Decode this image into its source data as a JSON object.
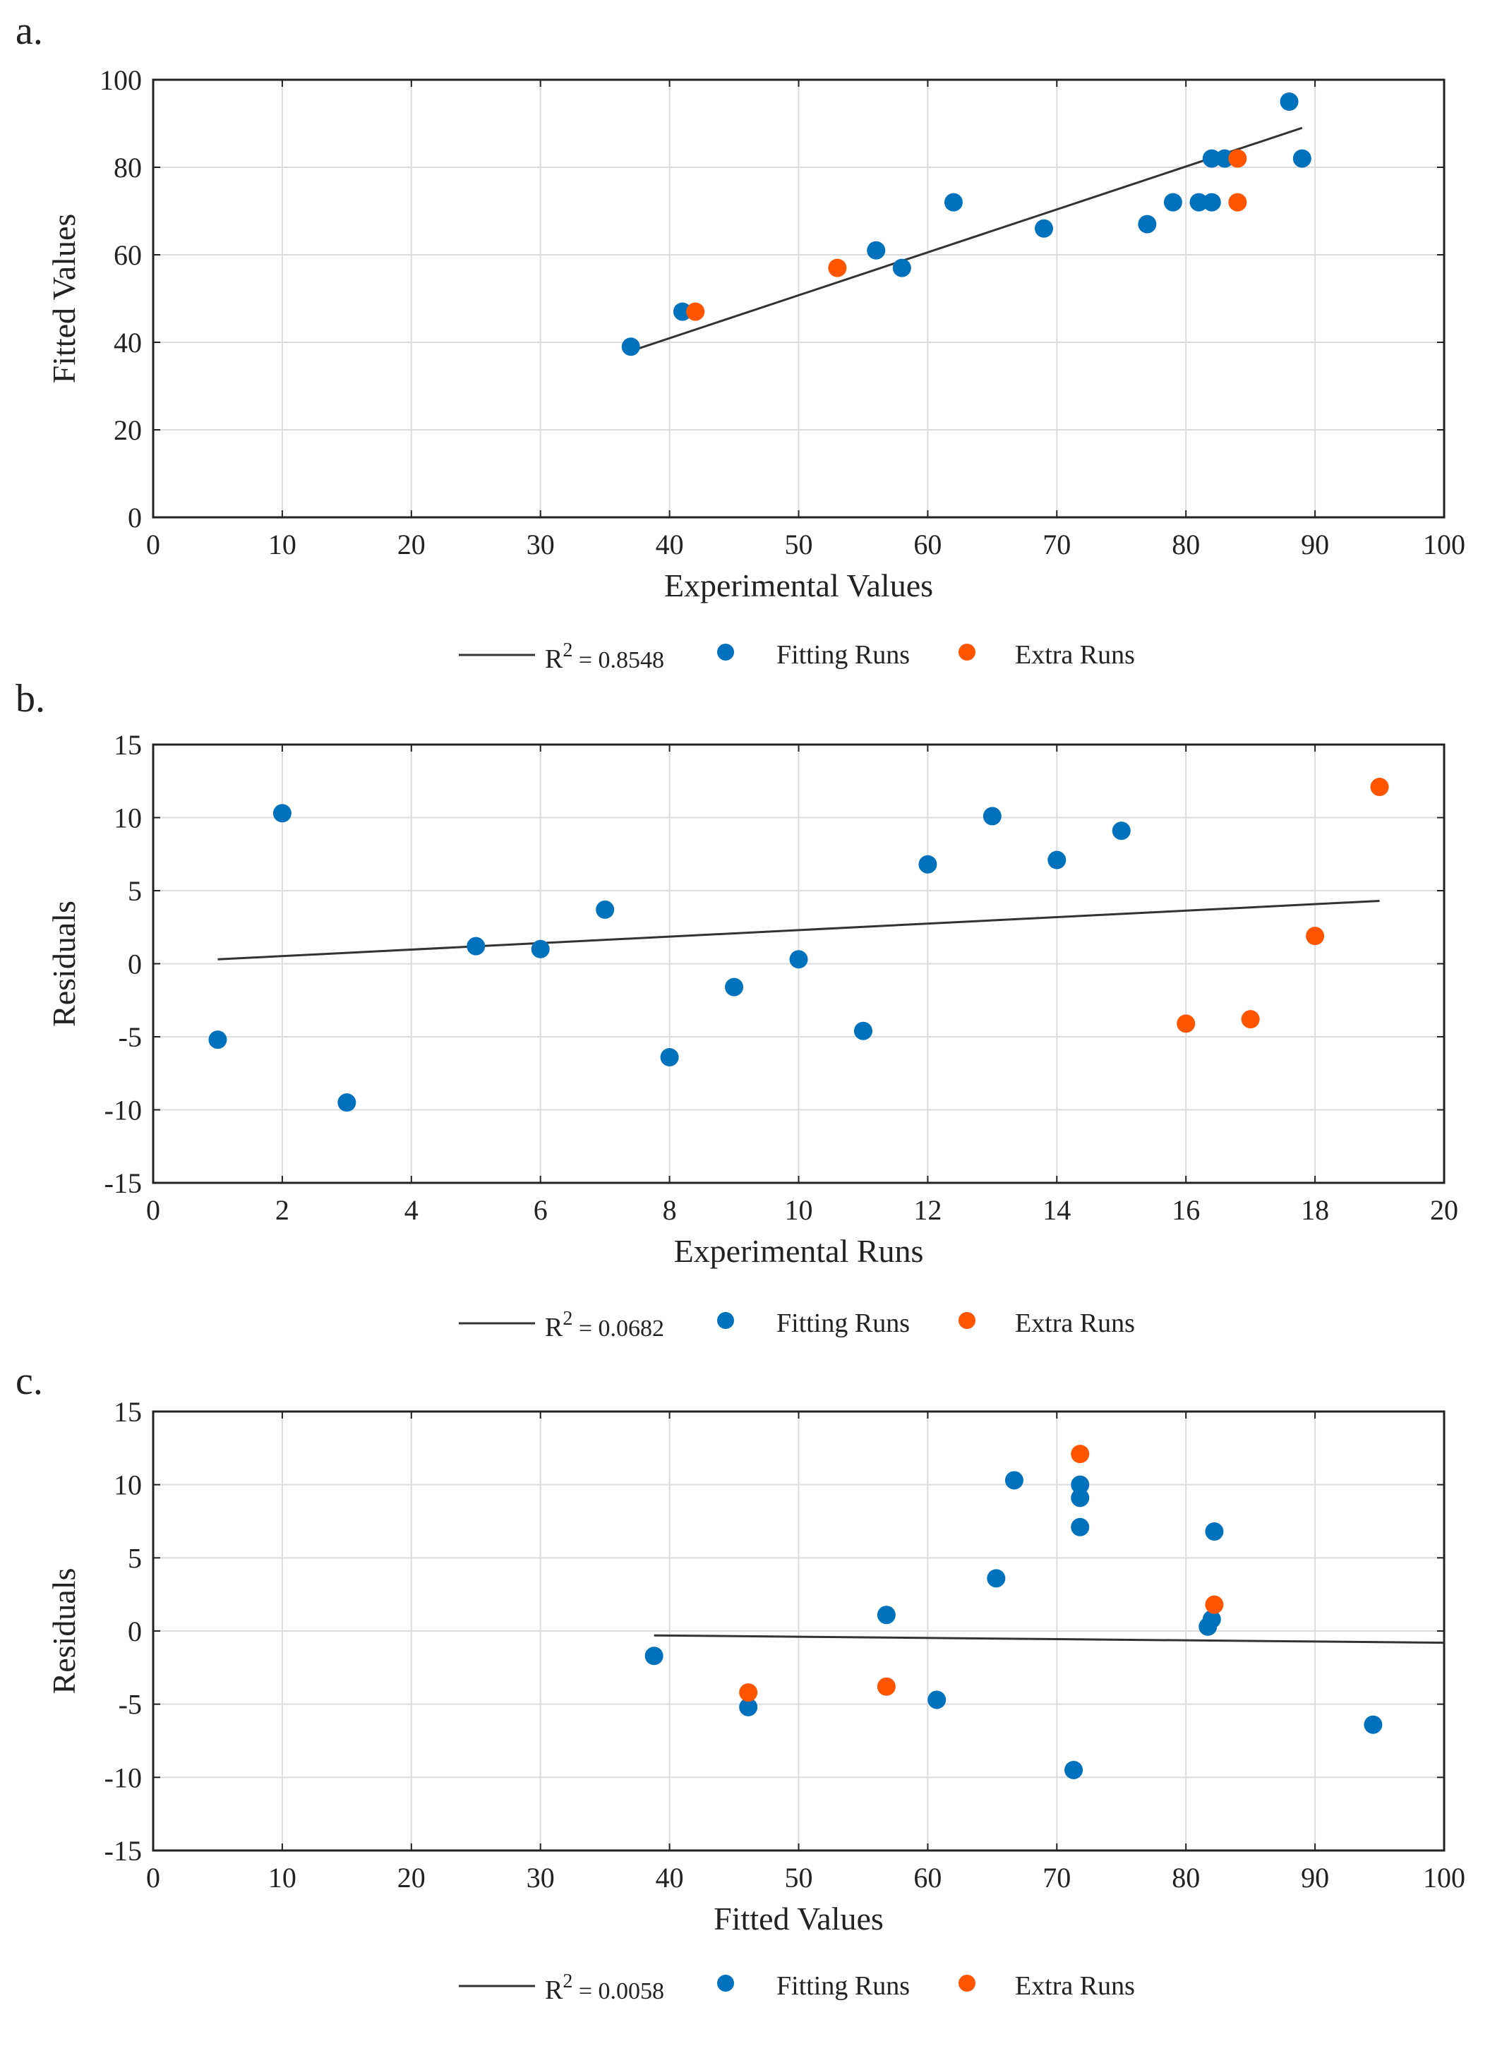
{
  "colors": {
    "fitting": "#0072BD",
    "extra": "#FF5500",
    "fit_line": "#333333",
    "grid": "#dcdcdc",
    "axis": "#222222"
  },
  "chart_data": [
    {
      "type": "scatter",
      "panel_label": "a.",
      "title": "",
      "xlabel": "Experimental Values",
      "ylabel": "Fitted Values",
      "xlim": [
        0,
        100
      ],
      "ylim": [
        0,
        100
      ],
      "xticks": [
        "0",
        "10",
        "20",
        "30",
        "40",
        "50",
        "60",
        "70",
        "80",
        "90",
        "100"
      ],
      "yticks": [
        "0",
        "20",
        "40",
        "60",
        "80",
        "100"
      ],
      "grid": true,
      "legend_position": "below",
      "series": [
        {
          "name": "Fitting Runs",
          "color": "#0072BD",
          "points": [
            [
              37,
              39
            ],
            [
              41,
              47
            ],
            [
              56,
              61
            ],
            [
              58,
              57
            ],
            [
              62,
              72
            ],
            [
              69,
              66
            ],
            [
              77,
              67
            ],
            [
              79,
              72
            ],
            [
              81,
              72
            ],
            [
              82,
              72
            ],
            [
              82,
              82
            ],
            [
              83,
              82
            ],
            [
              88,
              95
            ],
            [
              89,
              82
            ]
          ]
        },
        {
          "name": "Extra Runs",
          "color": "#FF5500",
          "points": [
            [
              42,
              47
            ],
            [
              53,
              57
            ],
            [
              84,
              72
            ],
            [
              84,
              82
            ]
          ]
        }
      ],
      "fit_line": {
        "name_prefix": "R",
        "name_exp": "2",
        "name_value": " = 0.8548",
        "x": [
          37,
          89
        ],
        "y": [
          38,
          89
        ]
      }
    },
    {
      "type": "scatter",
      "panel_label": "b.",
      "title": "",
      "xlabel": "Experimental Runs",
      "ylabel": "Residuals",
      "xlim": [
        0,
        20
      ],
      "ylim": [
        -15,
        15
      ],
      "xticks": [
        "0",
        "2",
        "4",
        "6",
        "8",
        "10",
        "12",
        "14",
        "16",
        "18",
        "20"
      ],
      "yticks": [
        "-15",
        "-10",
        "-5",
        "0",
        "5",
        "10",
        "15"
      ],
      "grid": true,
      "legend_position": "below",
      "series": [
        {
          "name": "Fitting Runs",
          "color": "#0072BD",
          "points": [
            [
              1,
              -5.2
            ],
            [
              2,
              10.3
            ],
            [
              3,
              -9.5
            ],
            [
              5,
              1.2
            ],
            [
              6,
              1.0
            ],
            [
              7,
              3.7
            ],
            [
              8,
              -6.4
            ],
            [
              9,
              -1.6
            ],
            [
              10,
              0.3
            ],
            [
              11,
              -4.6
            ],
            [
              12,
              6.8
            ],
            [
              13,
              10.1
            ],
            [
              14,
              7.1
            ],
            [
              15,
              9.1
            ]
          ]
        },
        {
          "name": "Extra Runs",
          "color": "#FF5500",
          "points": [
            [
              16,
              -4.1
            ],
            [
              17,
              -3.8
            ],
            [
              18,
              1.9
            ],
            [
              19,
              12.1
            ]
          ]
        }
      ],
      "fit_line": {
        "name_prefix": "R",
        "name_exp": "2",
        "name_value": " = 0.0682",
        "x": [
          1,
          19
        ],
        "y": [
          0.3,
          4.3
        ]
      }
    },
    {
      "type": "scatter",
      "panel_label": "c.",
      "title": "",
      "xlabel": "Fitted Values",
      "ylabel": "Residuals",
      "xlim": [
        0,
        100
      ],
      "ylim": [
        -15,
        15
      ],
      "xticks": [
        "0",
        "10",
        "20",
        "30",
        "40",
        "50",
        "60",
        "70",
        "80",
        "90",
        "100"
      ],
      "yticks": [
        "-15",
        "-10",
        "-5",
        "0",
        "5",
        "10",
        "15"
      ],
      "grid": true,
      "legend_position": "below",
      "series": [
        {
          "name": "Fitting Runs",
          "color": "#0072BD",
          "points": [
            [
              38.8,
              -1.7
            ],
            [
              46.1,
              -5.2
            ],
            [
              56.8,
              1.1
            ],
            [
              60.7,
              -4.7
            ],
            [
              65.3,
              3.6
            ],
            [
              66.7,
              10.3
            ],
            [
              71.3,
              -9.5
            ],
            [
              71.8,
              10.0
            ],
            [
              71.8,
              9.1
            ],
            [
              71.8,
              7.1
            ],
            [
              81.7,
              0.3
            ],
            [
              82.0,
              0.8
            ],
            [
              82.2,
              6.8
            ],
            [
              94.5,
              -6.4
            ]
          ]
        },
        {
          "name": "Extra Runs",
          "color": "#FF5500",
          "points": [
            [
              46.1,
              -4.2
            ],
            [
              56.8,
              -3.8
            ],
            [
              71.8,
              12.1
            ],
            [
              82.2,
              1.8
            ]
          ]
        }
      ],
      "fit_line": {
        "name_prefix": "R",
        "name_exp": "2",
        "name_value": " = 0.0058",
        "x": [
          38.8,
          100
        ],
        "y": [
          -0.3,
          -0.8
        ]
      }
    }
  ]
}
